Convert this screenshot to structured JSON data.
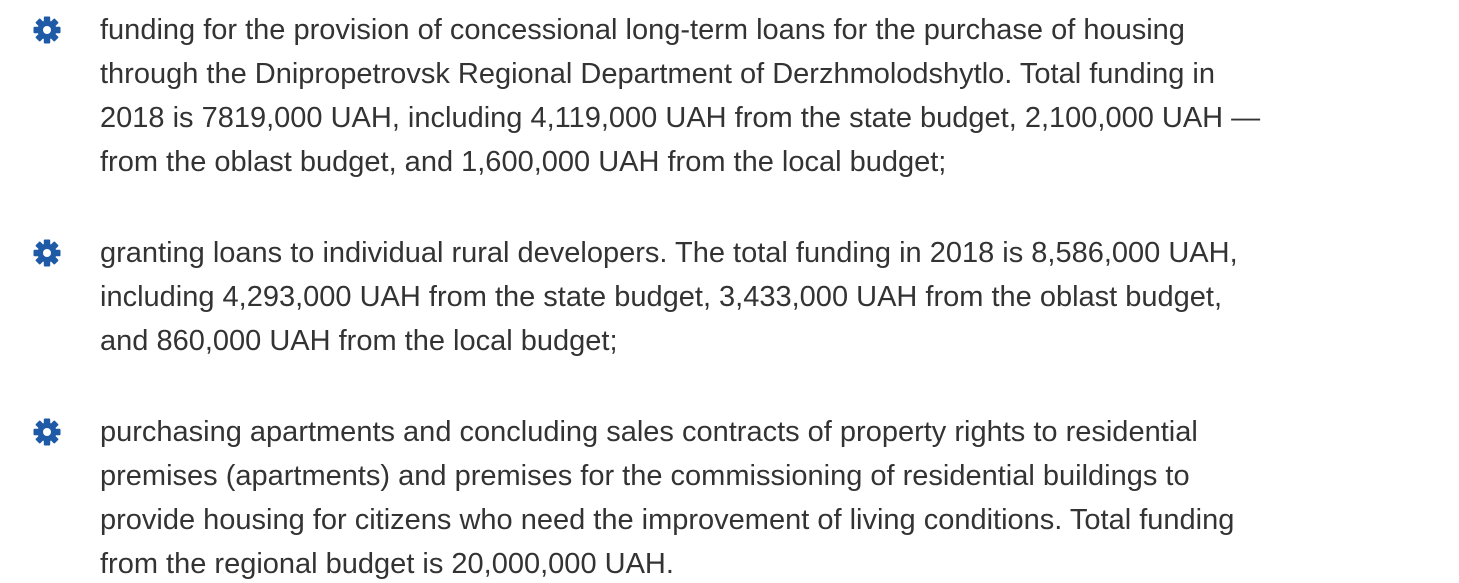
{
  "items": [
    {
      "lines": [
        "funding for the provision of concessional long-term loans for the purchase of housing",
        "through the Dnipropetrovsk Regional Department of Derzhmolodshytlo. Total funding in",
        "2018 is 7819,000 UAH, including 4,119,000 UAH from the state budget, 2,100,000 UAH —",
        "from the oblast budget, and 1,600,000 UAH from the local budget;"
      ]
    },
    {
      "lines": [
        "granting loans to individual rural developers. The total funding in 2018 is 8,586,000 UAH,",
        "including 4,293,000 UAH from the state budget, 3,433,000 UAH from the oblast budget,",
        "and 860,000 UAH from the local budget;"
      ]
    },
    {
      "lines": [
        "purchasing apartments and concluding sales contracts of property rights to residential",
        "premises (apartments) and premises for the commissioning of residential buildings to",
        "provide housing for citizens who need the improvement of living conditions. Total funding",
        "from the regional budget is 20,000,000 UAH."
      ]
    }
  ]
}
